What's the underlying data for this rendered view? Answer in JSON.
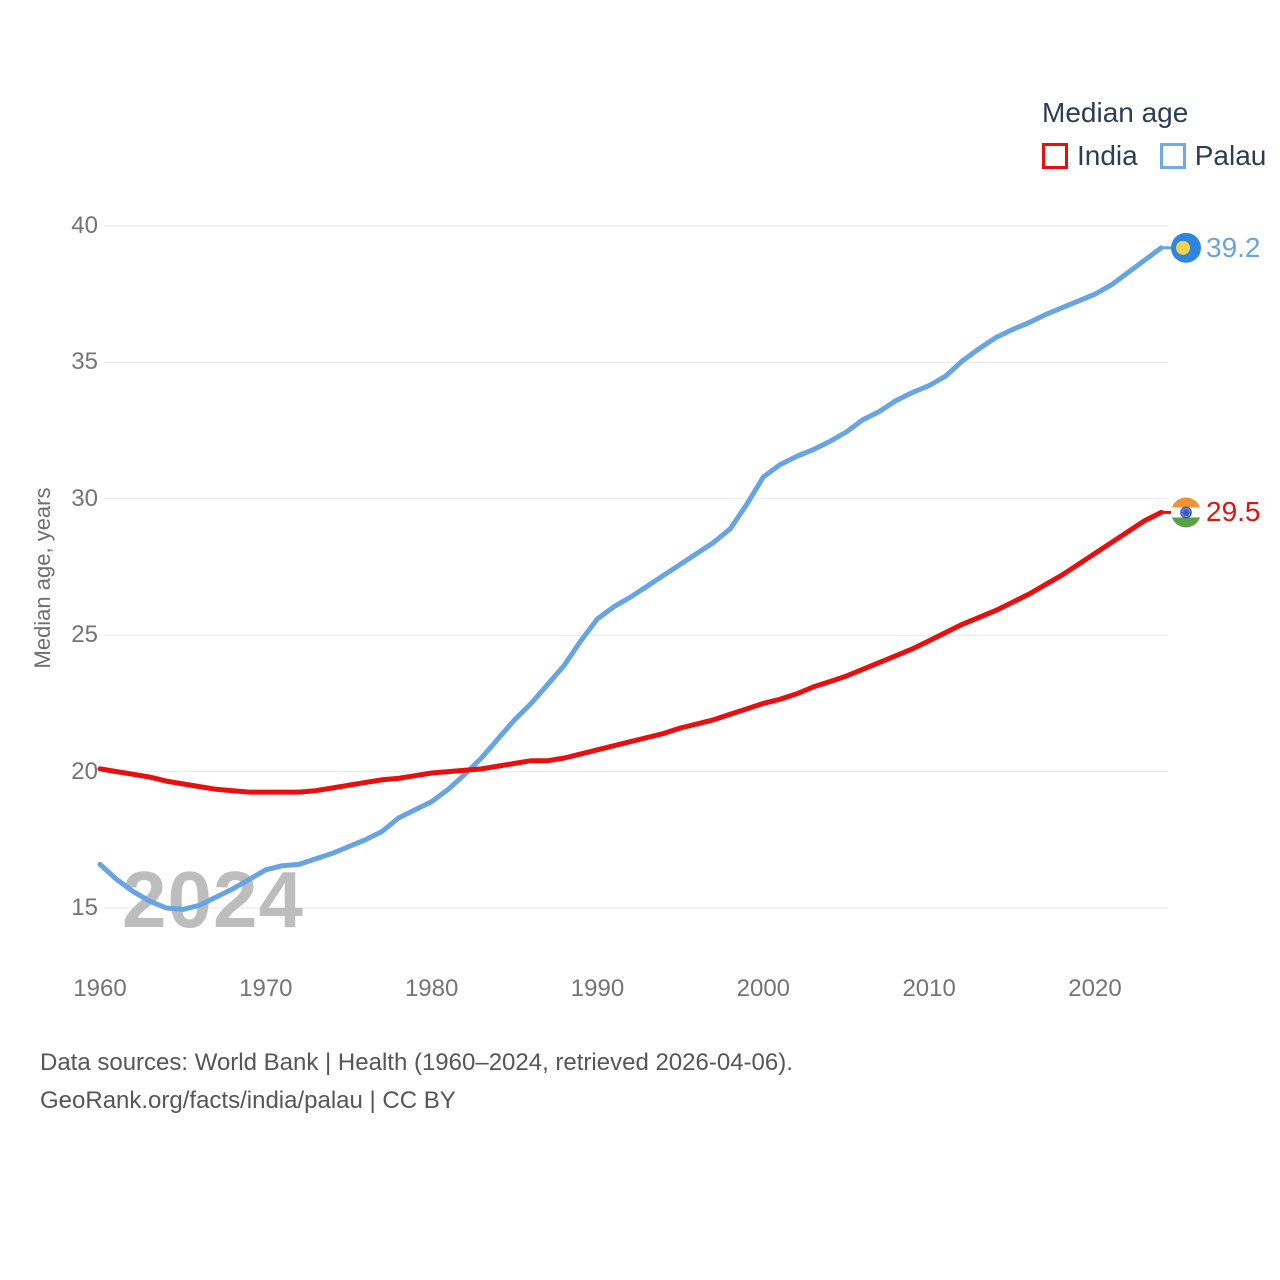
{
  "page": {
    "background": "#ffffff"
  },
  "legend": {
    "title": "Median age",
    "items": [
      {
        "label": "India",
        "color": "#e90f0f"
      },
      {
        "label": "Palau",
        "color": "#6fabe8"
      }
    ]
  },
  "watermark": "2024",
  "y_axis": {
    "title": "Median age, years"
  },
  "footer": {
    "line1": "Data sources: World Bank | Health (1960–2024, retrieved 2026-04-06).",
    "line2": "GeoRank.org/facts/india/palau | CC BY"
  },
  "icons": {
    "palau_flag": {
      "bg": "#2e86e0",
      "disc": "#f5d24b"
    },
    "india_flag": {
      "saffron": "#f09433",
      "white": "#ffffff",
      "green": "#56a245",
      "chakra": "#3c56c0"
    }
  },
  "chart_data": {
    "type": "line",
    "title": "Median age",
    "xlabel": "",
    "ylabel": "Median age, years",
    "grid": "horizontal",
    "legend_position": "top-right",
    "xlim": [
      1960,
      2024
    ],
    "ylim": [
      15,
      40
    ],
    "xticks": [
      1960,
      1970,
      1980,
      1990,
      2000,
      2010,
      2020
    ],
    "yticks": [
      40,
      35,
      30,
      25,
      20,
      15
    ],
    "gridline_color": "#e7e7e7",
    "x": [
      1960,
      1961,
      1962,
      1963,
      1964,
      1965,
      1966,
      1967,
      1968,
      1969,
      1970,
      1971,
      1972,
      1973,
      1974,
      1975,
      1976,
      1977,
      1978,
      1979,
      1980,
      1981,
      1982,
      1983,
      1984,
      1985,
      1986,
      1987,
      1988,
      1989,
      1990,
      1991,
      1992,
      1993,
      1994,
      1995,
      1996,
      1997,
      1998,
      1999,
      2000,
      2001,
      2002,
      2003,
      2004,
      2005,
      2006,
      2007,
      2008,
      2009,
      2010,
      2011,
      2012,
      2013,
      2014,
      2015,
      2016,
      2017,
      2018,
      2019,
      2020,
      2021,
      2022,
      2023,
      2024
    ],
    "series": [
      {
        "name": "India",
        "color": "#e90f0f",
        "end_label": "29.5",
        "flag_icon": "india-flag-icon",
        "values": [
          20.1,
          20.0,
          19.9,
          19.8,
          19.65,
          19.55,
          19.45,
          19.35,
          19.3,
          19.25,
          19.25,
          19.25,
          19.25,
          19.3,
          19.4,
          19.5,
          19.6,
          19.7,
          19.75,
          19.85,
          19.95,
          20.0,
          20.05,
          20.1,
          20.2,
          20.3,
          20.4,
          20.4,
          20.5,
          20.65,
          20.8,
          20.95,
          21.1,
          21.25,
          21.4,
          21.6,
          21.75,
          21.9,
          22.1,
          22.3,
          22.5,
          22.65,
          22.85,
          23.1,
          23.3,
          23.5,
          23.75,
          24.0,
          24.25,
          24.5,
          24.8,
          25.1,
          25.4,
          25.65,
          25.9,
          26.2,
          26.5,
          26.85,
          27.2,
          27.6,
          28.0,
          28.4,
          28.8,
          29.2,
          29.5
        ]
      },
      {
        "name": "Palau",
        "color": "#66a4e4",
        "end_label": "39.2",
        "flag_icon": "palau-flag-icon",
        "values": [
          16.6,
          16.05,
          15.6,
          15.25,
          15.0,
          14.95,
          15.1,
          15.4,
          15.7,
          16.05,
          16.4,
          16.55,
          16.6,
          16.8,
          17.0,
          17.25,
          17.5,
          17.8,
          18.3,
          18.6,
          18.9,
          19.35,
          19.9,
          20.5,
          21.2,
          21.9,
          22.5,
          23.2,
          23.9,
          24.8,
          25.6,
          26.05,
          26.4,
          26.8,
          27.2,
          27.6,
          28.0,
          28.4,
          28.9,
          29.8,
          30.8,
          31.25,
          31.55,
          31.8,
          32.1,
          32.45,
          32.9,
          33.2,
          33.6,
          33.9,
          34.15,
          34.5,
          35.05,
          35.5,
          35.9,
          36.2,
          36.45,
          36.75,
          37.0,
          37.25,
          37.5,
          37.85,
          38.3,
          38.75,
          39.2
        ]
      }
    ]
  }
}
